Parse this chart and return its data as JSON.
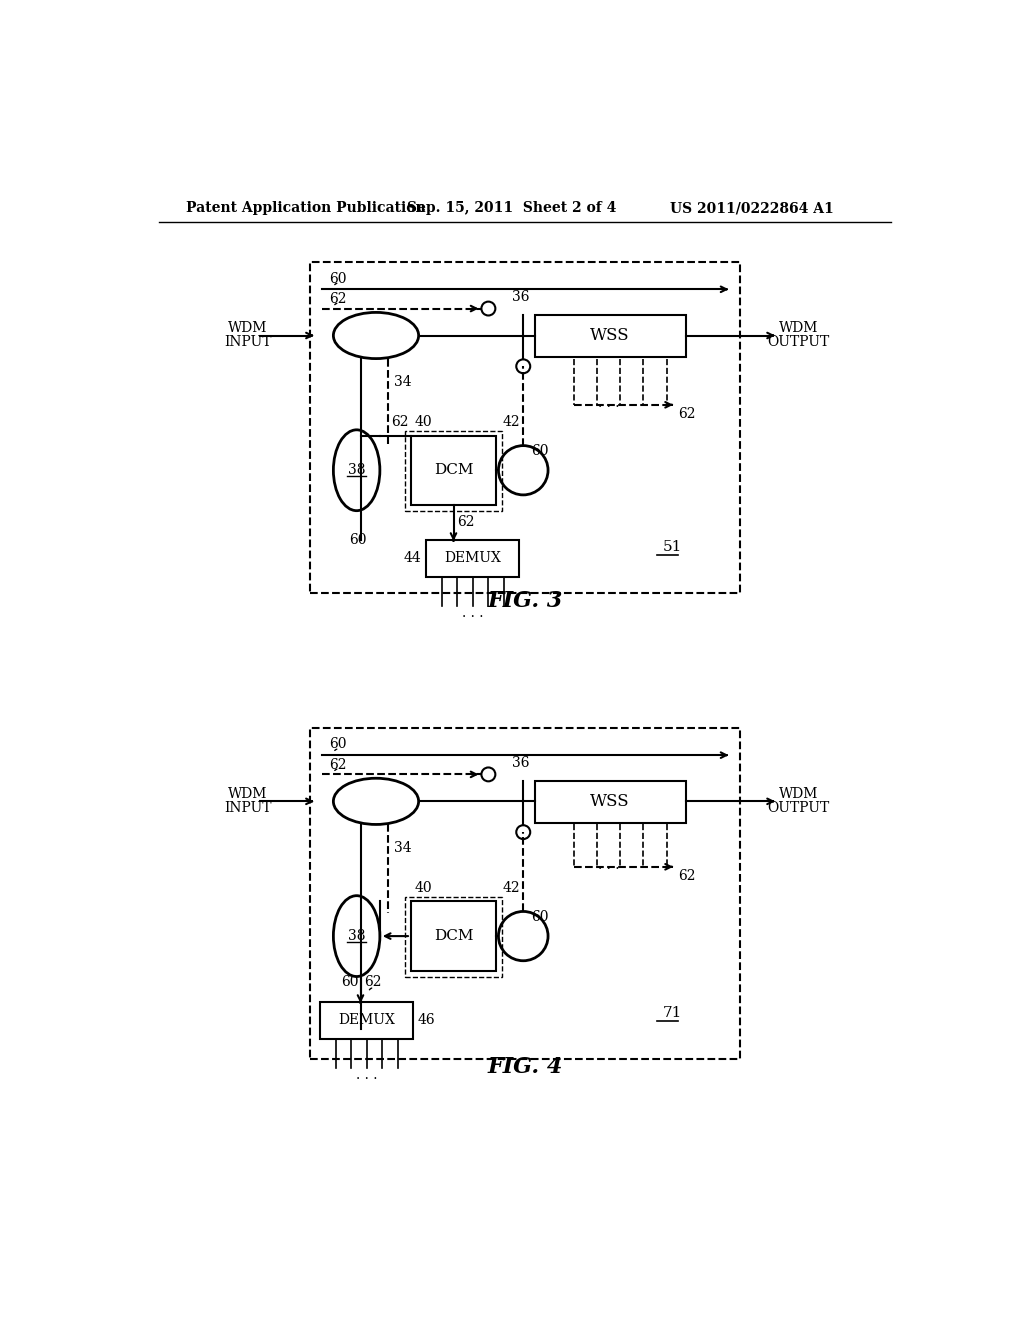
{
  "bg_color": "#ffffff",
  "header_left": "Patent Application Publication",
  "header_mid": "Sep. 15, 2011  Sheet 2 of 4",
  "header_right": "US 2011/0222864 A1",
  "fig3_label": "FIG. 3",
  "fig4_label": "FIG. 4",
  "fig3_ref": "51",
  "fig4_ref": "71"
}
